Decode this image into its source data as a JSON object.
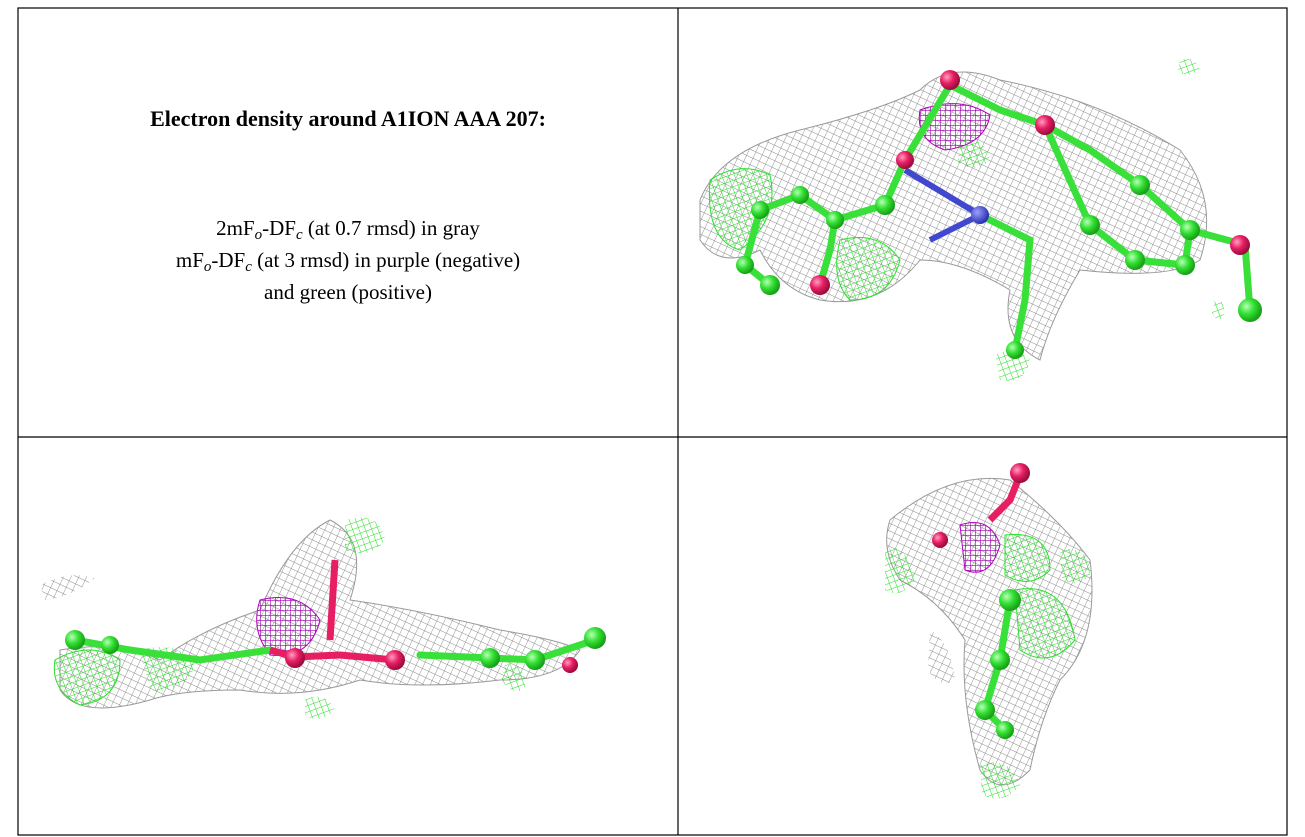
{
  "caption": {
    "title": "Electron density around A1ION AAA 207:",
    "lines": [
      [
        "2mF",
        "o",
        "-DF",
        "c",
        " (at 0.7 rmsd) in gray"
      ],
      [
        "mF",
        "o",
        "-DF",
        "c",
        " (at 3 rmsd) in purple (negative)"
      ],
      [
        "and green (positive)"
      ]
    ]
  }
}
